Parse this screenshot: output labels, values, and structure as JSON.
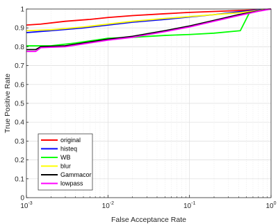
{
  "chart_data": {
    "type": "line",
    "xlabel": "False Acceptance Rate",
    "ylabel": "True Positive Rate",
    "xscale": "log",
    "xlim": [
      0.001,
      1
    ],
    "ylim": [
      0,
      1
    ],
    "grid": true,
    "legend_position": "bottom-left",
    "xticks": [
      {
        "value": 0.001,
        "base": "10",
        "exp": "-3"
      },
      {
        "value": 0.01,
        "base": "10",
        "exp": "-2"
      },
      {
        "value": 0.1,
        "base": "10",
        "exp": "-1"
      },
      {
        "value": 1,
        "base": "10",
        "exp": "0"
      }
    ],
    "yticks": [
      {
        "value": 0,
        "label": "0"
      },
      {
        "value": 0.1,
        "label": "0.1"
      },
      {
        "value": 0.2,
        "label": "0.2"
      },
      {
        "value": 0.3,
        "label": "0.3"
      },
      {
        "value": 0.4,
        "label": "0.4"
      },
      {
        "value": 0.5,
        "label": "0.5"
      },
      {
        "value": 0.6,
        "label": "0.6"
      },
      {
        "value": 0.7,
        "label": "0.7"
      },
      {
        "value": 0.8,
        "label": "0.8"
      },
      {
        "value": 0.9,
        "label": "0.9"
      },
      {
        "value": 1,
        "label": "1"
      }
    ],
    "series": [
      {
        "name": "original",
        "color": "#ff0000",
        "points": [
          [
            0.001,
            0.915
          ],
          [
            0.0015,
            0.92
          ],
          [
            0.003,
            0.935
          ],
          [
            0.006,
            0.945
          ],
          [
            0.01,
            0.955
          ],
          [
            0.02,
            0.965
          ],
          [
            0.05,
            0.975
          ],
          [
            0.1,
            0.982
          ],
          [
            0.3,
            0.99
          ],
          [
            0.6,
            0.995
          ],
          [
            1,
            1
          ]
        ]
      },
      {
        "name": "histeq",
        "color": "#0000ff",
        "points": [
          [
            0.001,
            0.875
          ],
          [
            0.002,
            0.885
          ],
          [
            0.005,
            0.9
          ],
          [
            0.01,
            0.915
          ],
          [
            0.02,
            0.93
          ],
          [
            0.05,
            0.945
          ],
          [
            0.1,
            0.958
          ],
          [
            0.2,
            0.97
          ],
          [
            0.4,
            0.985
          ],
          [
            0.7,
            0.995
          ],
          [
            1,
            1
          ]
        ]
      },
      {
        "name": "WB",
        "color": "#00ff00",
        "points": [
          [
            0.001,
            0.805
          ],
          [
            0.002,
            0.805
          ],
          [
            0.004,
            0.82
          ],
          [
            0.007,
            0.835
          ],
          [
            0.01,
            0.845
          ],
          [
            0.02,
            0.85
          ],
          [
            0.05,
            0.86
          ],
          [
            0.1,
            0.865
          ],
          [
            0.2,
            0.872
          ],
          [
            0.42,
            0.885
          ],
          [
            0.55,
            0.985
          ],
          [
            1,
            1
          ]
        ]
      },
      {
        "name": "blur",
        "color": "#ffff00",
        "points": [
          [
            0.001,
            0.885
          ],
          [
            0.002,
            0.89
          ],
          [
            0.005,
            0.905
          ],
          [
            0.01,
            0.92
          ],
          [
            0.02,
            0.935
          ],
          [
            0.05,
            0.95
          ],
          [
            0.1,
            0.96
          ],
          [
            0.2,
            0.97
          ],
          [
            0.4,
            0.98
          ],
          [
            0.7,
            0.992
          ],
          [
            1,
            1
          ]
        ]
      },
      {
        "name": "Gammacor",
        "color": "#000000",
        "points": [
          [
            0.001,
            0.785
          ],
          [
            0.0013,
            0.785
          ],
          [
            0.0015,
            0.8
          ],
          [
            0.003,
            0.805
          ],
          [
            0.005,
            0.82
          ],
          [
            0.01,
            0.84
          ],
          [
            0.02,
            0.855
          ],
          [
            0.05,
            0.885
          ],
          [
            0.1,
            0.91
          ],
          [
            0.2,
            0.94
          ],
          [
            0.4,
            0.97
          ],
          [
            0.7,
            0.99
          ],
          [
            1,
            1
          ]
        ]
      },
      {
        "name": "lowpass",
        "color": "#ff00ff",
        "points": [
          [
            0.001,
            0.775
          ],
          [
            0.0013,
            0.775
          ],
          [
            0.0015,
            0.795
          ],
          [
            0.003,
            0.8
          ],
          [
            0.005,
            0.815
          ],
          [
            0.01,
            0.835
          ],
          [
            0.02,
            0.85
          ],
          [
            0.05,
            0.88
          ],
          [
            0.1,
            0.905
          ],
          [
            0.2,
            0.935
          ],
          [
            0.4,
            0.965
          ],
          [
            0.7,
            0.988
          ],
          [
            1,
            1
          ]
        ]
      }
    ]
  }
}
